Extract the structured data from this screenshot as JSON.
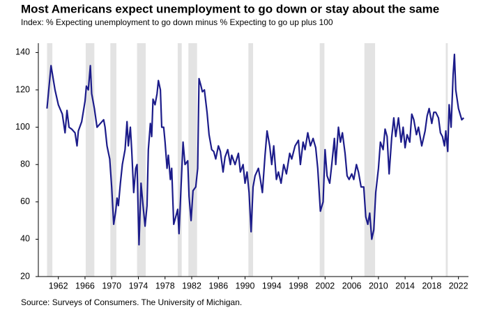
{
  "chart_data": {
    "type": "line",
    "title": "Most Americans expect unemployment to go down or stay about the same",
    "subtitle": "Index: % Expecting unemployment to go down minus % Expecting to go up plus 100",
    "source": "Source: Surveys of Consumers. The University of Michigan.",
    "x": [
      1960.3,
      1960.9,
      1961.5,
      1962,
      1962.6,
      1963,
      1963.3,
      1963.6,
      1964,
      1964.5,
      1964.8,
      1965,
      1965.5,
      1966,
      1966.2,
      1966.5,
      1966.8,
      1967,
      1967.4,
      1967.8,
      1968.3,
      1968.8,
      1969,
      1969.3,
      1969.7,
      1970,
      1970.3,
      1970.6,
      1970.8,
      1971,
      1971.3,
      1971.6,
      1972,
      1972.3,
      1972.5,
      1972.8,
      1973,
      1973.3,
      1973.6,
      1973.8,
      1974.1,
      1974.4,
      1974.7,
      1975,
      1975.3,
      1975.5,
      1975.8,
      1976,
      1976.2,
      1976.5,
      1976.8,
      1977,
      1977.3,
      1977.5,
      1977.8,
      1978,
      1978.3,
      1978.5,
      1978.8,
      1979,
      1979.3,
      1979.6,
      1979.9,
      1980.1,
      1980.4,
      1980.7,
      1981,
      1981.4,
      1981.6,
      1981.9,
      1982.2,
      1982.6,
      1982.9,
      1983.1,
      1983.4,
      1983.6,
      1983.9,
      1984.3,
      1984.6,
      1985,
      1985.3,
      1985.6,
      1986,
      1986.3,
      1986.7,
      1987,
      1987.4,
      1987.8,
      1988,
      1988.5,
      1989,
      1989.3,
      1989.7,
      1990,
      1990.3,
      1990.6,
      1990.9,
      1991.2,
      1991.5,
      1992,
      1992.3,
      1992.6,
      1993,
      1993.3,
      1993.7,
      1994,
      1994.3,
      1994.7,
      1995,
      1995.4,
      1995.8,
      1996.2,
      1996.7,
      1997,
      1997.5,
      1998,
      1998.3,
      1998.7,
      1999,
      1999.4,
      1999.8,
      2000.2,
      2000.6,
      2000.9,
      2001.3,
      2001.7,
      2002,
      2002.3,
      2002.7,
      2003,
      2003.4,
      2003.6,
      2004,
      2004.3,
      2004.6,
      2005,
      2005.3,
      2005.6,
      2006,
      2006.3,
      2006.7,
      2007,
      2007.4,
      2007.8,
      2008.1,
      2008.4,
      2008.7,
      2009,
      2009.3,
      2009.6,
      2010,
      2010.3,
      2010.7,
      2011,
      2011.3,
      2011.6,
      2012,
      2012.3,
      2012.6,
      2013,
      2013.4,
      2013.7,
      2014,
      2014.3,
      2014.7,
      2015,
      2015.3,
      2015.7,
      2016,
      2016.5,
      2017,
      2017.3,
      2017.6,
      2018,
      2018.3,
      2018.6,
      2019,
      2019.3,
      2019.6,
      2019.9,
      2020.1,
      2020.4,
      2020.6,
      2020.9,
      2021.2,
      2021.4,
      2021.6,
      2022,
      2022.5,
      2022.8
    ],
    "series": [
      {
        "color": "#1c1c8a",
        "values": [
          110,
          133,
          120,
          112,
          107,
          97,
          109,
          100,
          99,
          97,
          90,
          98,
          103,
          114,
          122,
          120,
          133,
          118,
          110,
          100,
          102,
          104,
          100,
          90,
          83,
          68,
          48,
          55,
          62,
          58,
          70,
          80,
          88,
          103,
          90,
          100,
          88,
          65,
          78,
          80,
          37,
          70,
          58,
          47,
          58,
          88,
          102,
          95,
          115,
          112,
          118,
          125,
          120,
          100,
          100,
          92,
          78,
          85,
          72,
          78,
          48,
          52,
          56,
          43,
          68,
          92,
          80,
          82,
          63,
          50,
          66,
          68,
          78,
          126,
          122,
          119,
          120,
          108,
          96,
          88,
          87,
          83,
          90,
          87,
          76,
          84,
          88,
          80,
          85,
          80,
          86,
          76,
          80,
          70,
          76,
          65,
          44,
          68,
          74,
          78,
          72,
          65,
          85,
          98,
          90,
          80,
          90,
          72,
          76,
          70,
          80,
          75,
          86,
          83,
          90,
          93,
          80,
          92,
          88,
          97,
          90,
          94,
          89,
          78,
          55,
          60,
          88,
          74,
          70,
          80,
          94,
          80,
          100,
          92,
          97,
          86,
          74,
          72,
          75,
          72,
          80,
          76,
          68,
          68,
          52,
          48,
          54,
          40,
          45,
          65,
          78,
          92,
          88,
          99,
          95,
          75,
          95,
          105,
          95,
          105,
          92,
          100,
          89,
          96,
          92,
          107,
          104,
          96,
          100,
          90,
          98,
          106,
          110,
          102,
          108,
          108,
          105,
          97,
          95,
          90,
          98,
          87,
          112,
          100,
          128,
          139,
          120,
          110,
          104,
          105
        ]
      }
    ],
    "recessions": [
      [
        1960.3,
        1961.1
      ],
      [
        1966.1,
        1967.4
      ],
      [
        1969.8,
        1970.7
      ],
      [
        1973.8,
        1975.1
      ],
      [
        1979.9,
        1980.5
      ],
      [
        1981.5,
        1982.8
      ],
      [
        1990.5,
        1991.2
      ],
      [
        2001.2,
        2001.9
      ],
      [
        2007.9,
        2009.5
      ],
      [
        2020.1,
        2020.4
      ]
    ],
    "shading_color": "#e3e3e3",
    "xlim": [
      1959,
      2023.5
    ],
    "ylim": [
      20,
      145
    ],
    "xticks": [
      1962,
      1966,
      1970,
      1974,
      1978,
      1982,
      1986,
      1990,
      1994,
      1998,
      2002,
      2006,
      2010,
      2014,
      2018,
      2022
    ],
    "yticks": [
      20,
      40,
      60,
      80,
      100,
      120,
      140
    ]
  }
}
